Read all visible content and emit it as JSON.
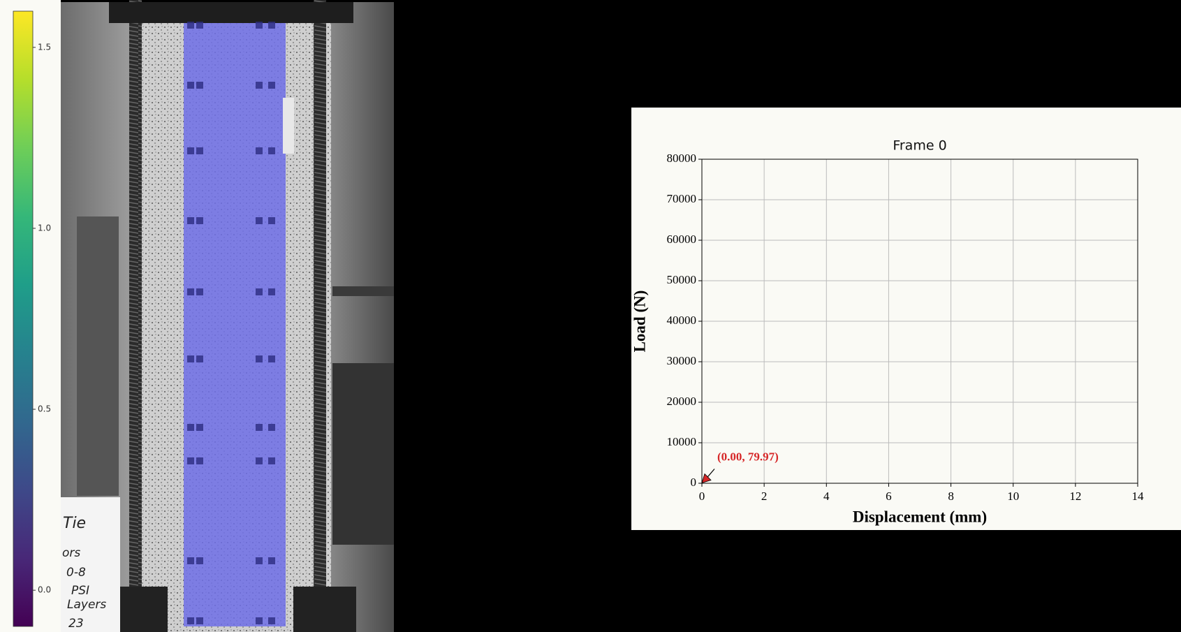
{
  "chart_data": [
    {
      "type": "colorbar",
      "colormap": "viridis",
      "ylim": [
        -0.1,
        1.6
      ],
      "yticks": [
        {
          "value": 0,
          "label": "0.0"
        },
        0.5,
        {
          "value": 1,
          "label": "1.0"
        },
        1.5
      ]
    },
    {
      "type": "scatter",
      "title": "Frame 0",
      "xlabel": "Displacement (mm)",
      "ylabel": "Load (N)",
      "xlim": [
        0,
        14
      ],
      "xticks": [
        0,
        2,
        4,
        6,
        8,
        10,
        12,
        14
      ],
      "ylim": [
        0,
        80000
      ],
      "yticks": [
        0,
        10000,
        20000,
        30000,
        40000,
        50000,
        60000,
        70000,
        80000
      ],
      "grid": true,
      "annotation": "(0.00, 79.97)",
      "series": [
        {
          "color": "#d62728",
          "x": [
            0.0
          ],
          "values": [
            79.97
          ]
        }
      ]
    }
  ],
  "photo_text": [
    "Tie",
    "ors",
    "0-8",
    "PSI",
    "Layers",
    "23"
  ]
}
